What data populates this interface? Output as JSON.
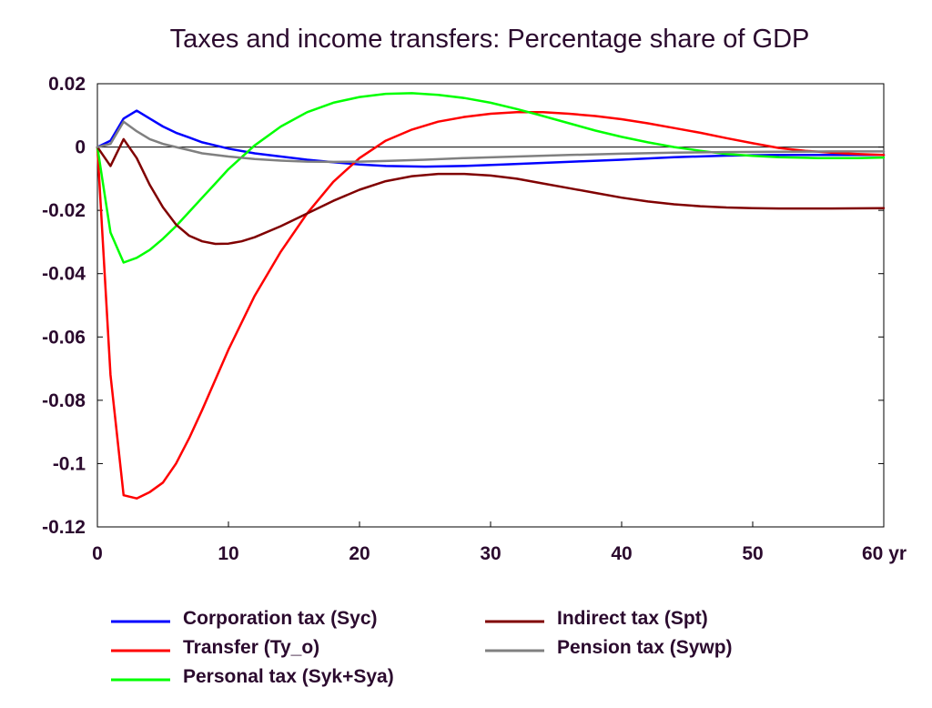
{
  "chart_data": {
    "type": "line",
    "title": "Taxes and income transfers: Percentage share of GDP",
    "xlabel": "",
    "ylabel": "",
    "x_unit_label": "yr",
    "xlim": [
      0,
      60
    ],
    "ylim": [
      -0.12,
      0.02
    ],
    "x_ticks": [
      0,
      10,
      20,
      30,
      40,
      50,
      60
    ],
    "x_tick_labels": [
      "0",
      "10",
      "20",
      "30",
      "40",
      "50",
      "60"
    ],
    "y_ticks": [
      0.02,
      0,
      -0.02,
      -0.04,
      -0.06,
      -0.08,
      -0.1,
      -0.12
    ],
    "y_tick_labels": [
      "0.02",
      "0",
      "-0.02",
      "-0.04",
      "-0.06",
      "-0.08",
      "-0.1",
      "-0.12"
    ],
    "grid": false,
    "zero_line": true,
    "legend_position": "bottom",
    "series": [
      {
        "name": "Corporation tax (Syc)",
        "color": "#0000ff",
        "points": [
          [
            0,
            0
          ],
          [
            1,
            0.002
          ],
          [
            2,
            0.009
          ],
          [
            3,
            0.0115
          ],
          [
            4,
            0.009
          ],
          [
            5,
            0.0065
          ],
          [
            6,
            0.0045
          ],
          [
            7,
            0.003
          ],
          [
            8,
            0.0015
          ],
          [
            9,
            0.0005
          ],
          [
            10,
            -0.0005
          ],
          [
            12,
            -0.002
          ],
          [
            14,
            -0.003
          ],
          [
            16,
            -0.004
          ],
          [
            18,
            -0.0048
          ],
          [
            20,
            -0.0055
          ],
          [
            22,
            -0.006
          ],
          [
            25,
            -0.0062
          ],
          [
            28,
            -0.006
          ],
          [
            31,
            -0.0055
          ],
          [
            34,
            -0.005
          ],
          [
            37,
            -0.0045
          ],
          [
            40,
            -0.004
          ],
          [
            44,
            -0.0032
          ],
          [
            48,
            -0.0027
          ],
          [
            52,
            -0.0025
          ],
          [
            56,
            -0.0025
          ],
          [
            60,
            -0.0025
          ]
        ]
      },
      {
        "name": "Transfer (Ty_o)",
        "color": "#ff0000",
        "points": [
          [
            0,
            0
          ],
          [
            1,
            -0.072
          ],
          [
            2,
            -0.11
          ],
          [
            3,
            -0.111
          ],
          [
            4,
            -0.109
          ],
          [
            5,
            -0.106
          ],
          [
            6,
            -0.1
          ],
          [
            7,
            -0.092
          ],
          [
            8,
            -0.083
          ],
          [
            10,
            -0.064
          ],
          [
            12,
            -0.047
          ],
          [
            14,
            -0.033
          ],
          [
            16,
            -0.021
          ],
          [
            18,
            -0.011
          ],
          [
            20,
            -0.0035
          ],
          [
            22,
            0.002
          ],
          [
            24,
            0.0055
          ],
          [
            26,
            0.008
          ],
          [
            28,
            0.0095
          ],
          [
            30,
            0.0105
          ],
          [
            32,
            0.011
          ],
          [
            34,
            0.011
          ],
          [
            36,
            0.0105
          ],
          [
            38,
            0.0098
          ],
          [
            40,
            0.0088
          ],
          [
            42,
            0.0075
          ],
          [
            44,
            0.006
          ],
          [
            46,
            0.0045
          ],
          [
            48,
            0.0028
          ],
          [
            50,
            0.0012
          ],
          [
            52,
            -0.0003
          ],
          [
            54,
            -0.0012
          ],
          [
            56,
            -0.0018
          ],
          [
            58,
            -0.0022
          ],
          [
            60,
            -0.0025
          ]
        ]
      },
      {
        "name": "Personal tax (Syk+Sya)",
        "color": "#00ff00",
        "points": [
          [
            0,
            0
          ],
          [
            1,
            -0.027
          ],
          [
            2,
            -0.0365
          ],
          [
            3,
            -0.035
          ],
          [
            4,
            -0.0325
          ],
          [
            5,
            -0.029
          ],
          [
            6,
            -0.025
          ],
          [
            7,
            -0.0205
          ],
          [
            8,
            -0.016
          ],
          [
            9,
            -0.0115
          ],
          [
            10,
            -0.007
          ],
          [
            12,
            0.0005
          ],
          [
            14,
            0.0065
          ],
          [
            16,
            0.011
          ],
          [
            18,
            0.014
          ],
          [
            20,
            0.0158
          ],
          [
            22,
            0.0168
          ],
          [
            24,
            0.017
          ],
          [
            26,
            0.0165
          ],
          [
            28,
            0.0155
          ],
          [
            30,
            0.014
          ],
          [
            32,
            0.012
          ],
          [
            34,
            0.0098
          ],
          [
            36,
            0.0075
          ],
          [
            38,
            0.0052
          ],
          [
            40,
            0.0032
          ],
          [
            42,
            0.0015
          ],
          [
            44,
            0
          ],
          [
            46,
            -0.0012
          ],
          [
            48,
            -0.0022
          ],
          [
            50,
            -0.0028
          ],
          [
            52,
            -0.0032
          ],
          [
            55,
            -0.0035
          ],
          [
            58,
            -0.0035
          ],
          [
            60,
            -0.0033
          ]
        ]
      },
      {
        "name": "Indirect tax (Spt)",
        "color": "#800000",
        "points": [
          [
            0,
            0
          ],
          [
            1,
            -0.006
          ],
          [
            2,
            0.0025
          ],
          [
            3,
            -0.0035
          ],
          [
            4,
            -0.012
          ],
          [
            5,
            -0.019
          ],
          [
            6,
            -0.0245
          ],
          [
            7,
            -0.028
          ],
          [
            8,
            -0.0298
          ],
          [
            9,
            -0.0306
          ],
          [
            10,
            -0.0305
          ],
          [
            11,
            -0.0298
          ],
          [
            12,
            -0.0285
          ],
          [
            14,
            -0.025
          ],
          [
            16,
            -0.021
          ],
          [
            18,
            -0.017
          ],
          [
            20,
            -0.0135
          ],
          [
            22,
            -0.0108
          ],
          [
            24,
            -0.0092
          ],
          [
            26,
            -0.0085
          ],
          [
            28,
            -0.0085
          ],
          [
            30,
            -0.009
          ],
          [
            32,
            -0.01
          ],
          [
            34,
            -0.0115
          ],
          [
            36,
            -0.013
          ],
          [
            38,
            -0.0145
          ],
          [
            40,
            -0.016
          ],
          [
            42,
            -0.0172
          ],
          [
            44,
            -0.0181
          ],
          [
            46,
            -0.0187
          ],
          [
            48,
            -0.0191
          ],
          [
            50,
            -0.0193
          ],
          [
            52,
            -0.0194
          ],
          [
            56,
            -0.0194
          ],
          [
            60,
            -0.0193
          ]
        ]
      },
      {
        "name": "Pension tax (Sywp)",
        "color": "#808080",
        "points": [
          [
            0,
            0
          ],
          [
            1,
            0.001
          ],
          [
            2,
            0.008
          ],
          [
            3,
            0.005
          ],
          [
            4,
            0.0025
          ],
          [
            5,
            0.001
          ],
          [
            6,
            0
          ],
          [
            7,
            -0.001
          ],
          [
            8,
            -0.002
          ],
          [
            10,
            -0.003
          ],
          [
            12,
            -0.0038
          ],
          [
            14,
            -0.0043
          ],
          [
            16,
            -0.0046
          ],
          [
            18,
            -0.0047
          ],
          [
            20,
            -0.0046
          ],
          [
            22,
            -0.0044
          ],
          [
            25,
            -0.004
          ],
          [
            28,
            -0.0035
          ],
          [
            32,
            -0.003
          ],
          [
            36,
            -0.0025
          ],
          [
            40,
            -0.0021
          ],
          [
            44,
            -0.0018
          ],
          [
            48,
            -0.0016
          ],
          [
            52,
            -0.0015
          ],
          [
            56,
            -0.0014
          ],
          [
            60,
            -0.0014
          ]
        ]
      }
    ],
    "legend_layout": [
      {
        "series_index": 0,
        "col": 0,
        "row": 0
      },
      {
        "series_index": 1,
        "col": 0,
        "row": 1
      },
      {
        "series_index": 2,
        "col": 0,
        "row": 2
      },
      {
        "series_index": 3,
        "col": 1,
        "row": 0
      },
      {
        "series_index": 4,
        "col": 1,
        "row": 1
      }
    ]
  }
}
